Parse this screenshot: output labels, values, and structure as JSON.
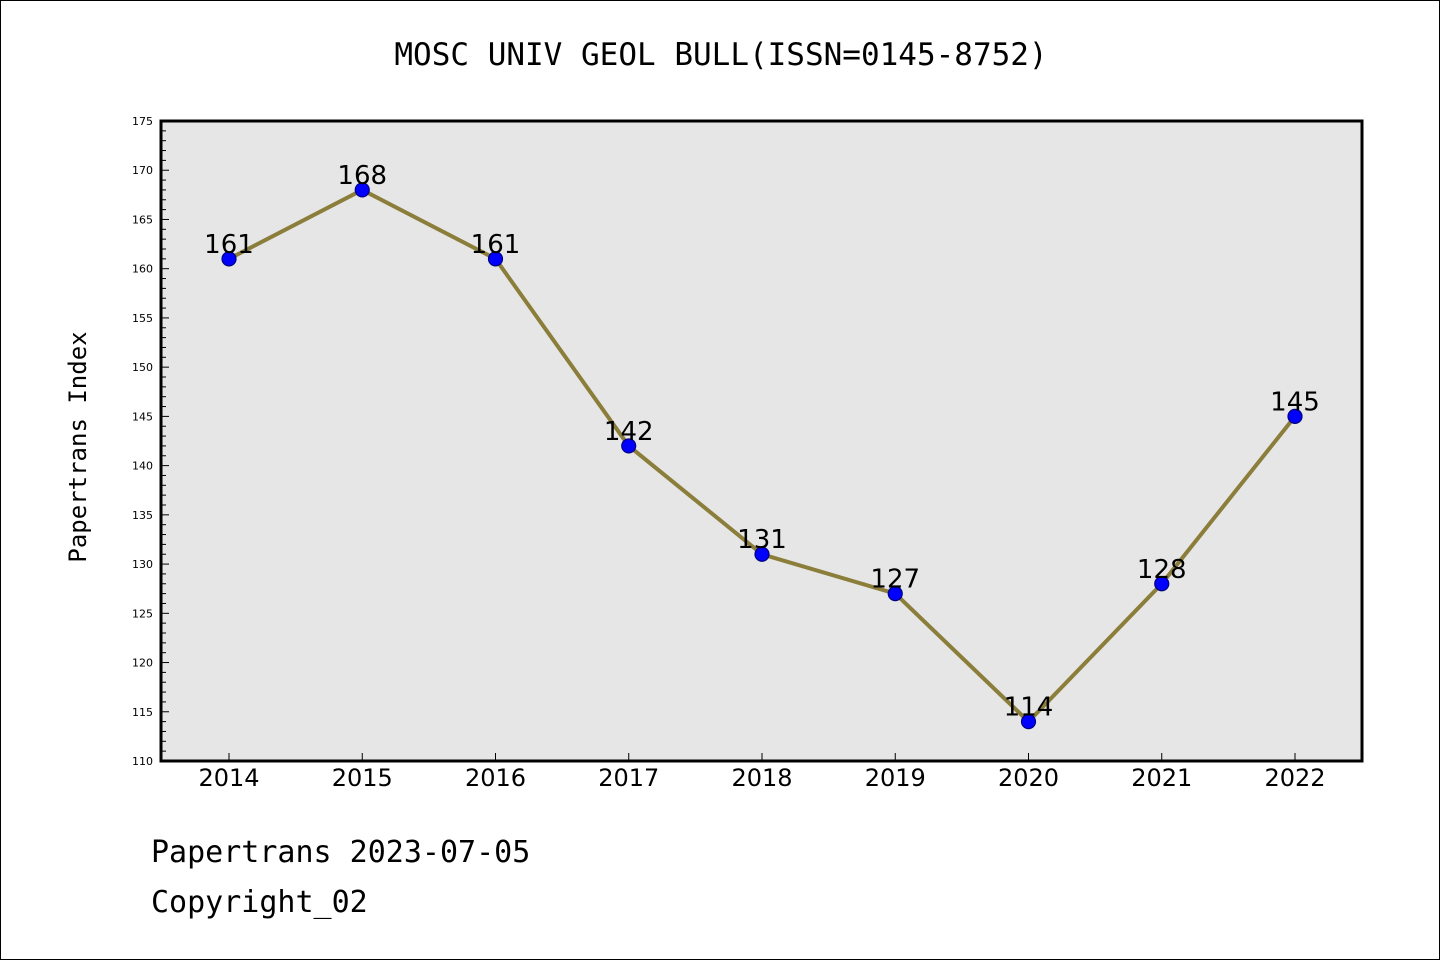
{
  "title": "MOSC UNIV GEOL BULL(ISSN=0145-8752)",
  "footer": {
    "line1": "Papertrans 2023-07-05",
    "line2": "Copyright_02"
  },
  "colors": {
    "plot_background": "#e6e6e6",
    "line": "#8b7d3a",
    "marker": "#0000ff",
    "marker_edge": "#000080",
    "axis": "#000000"
  },
  "chart_data": {
    "type": "line",
    "title": "MOSC UNIV GEOL BULL(ISSN=0145-8752)",
    "xlabel": "",
    "ylabel": "Papertrans Index",
    "categories": [
      "2014",
      "2015",
      "2016",
      "2017",
      "2018",
      "2019",
      "2020",
      "2021",
      "2022"
    ],
    "series": [
      {
        "values": [
          161,
          168,
          161,
          142,
          131,
          127,
          114,
          128,
          145
        ]
      }
    ],
    "data_labels": [
      "161",
      "168",
      "161",
      "142",
      "131",
      "127",
      "114",
      "128",
      "145"
    ],
    "ylim": [
      110,
      175
    ],
    "ytick_step": 5,
    "grid": false,
    "legend": "none"
  }
}
